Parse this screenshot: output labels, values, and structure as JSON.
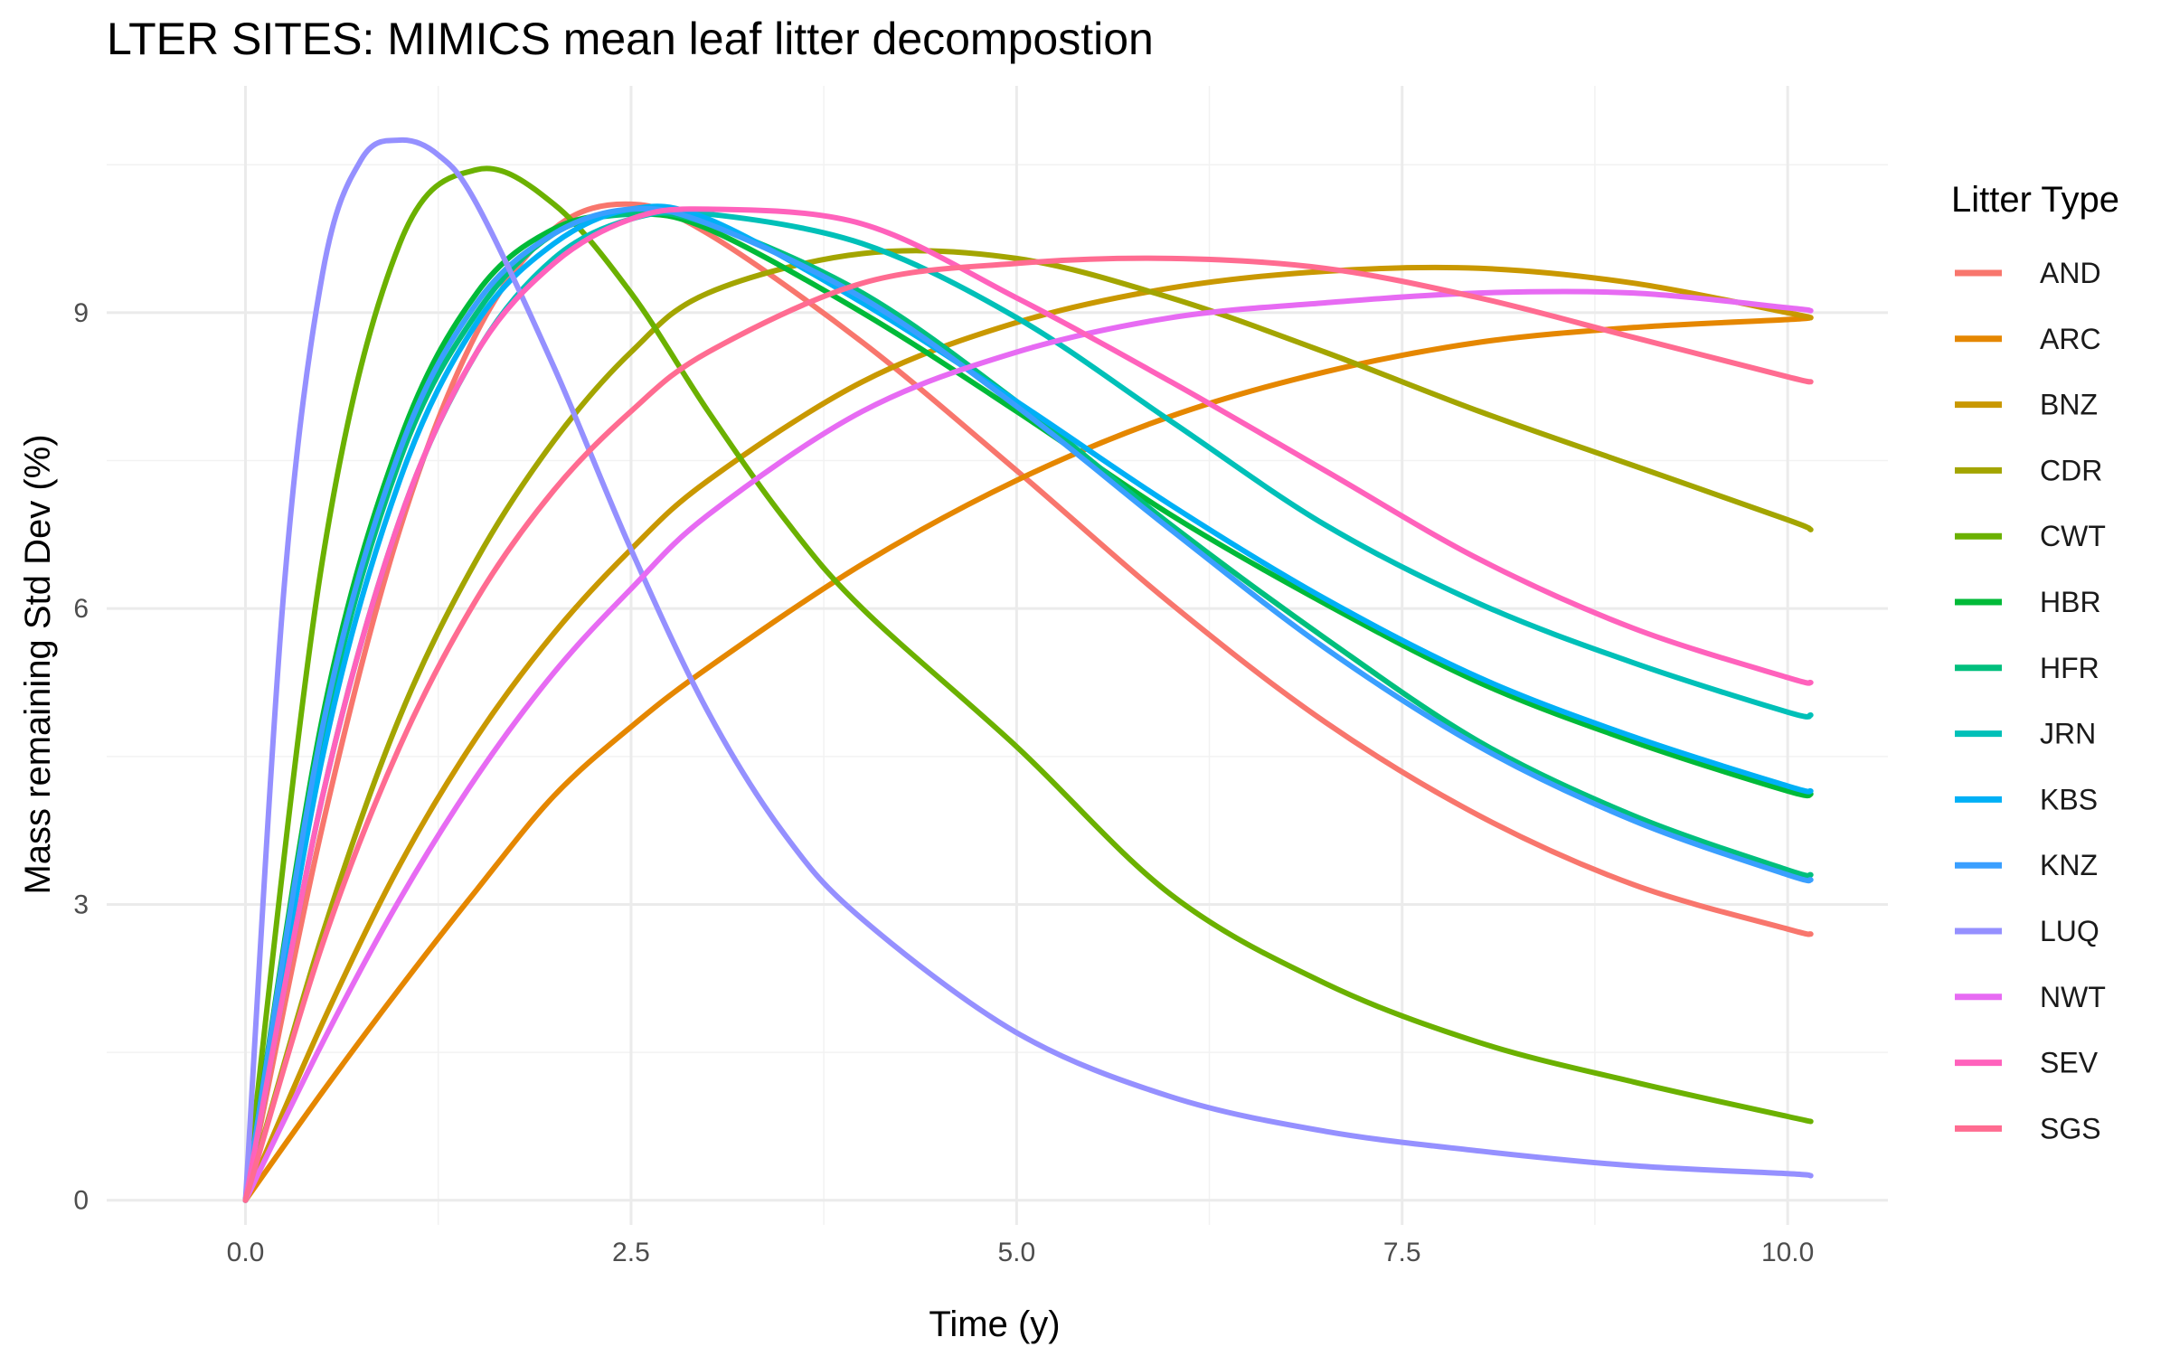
{
  "chart_data": {
    "type": "line",
    "title": "LTER SITES: MIMICS mean leaf litter decompostion",
    "xlabel": "Time (y)",
    "ylabel": "Mass remaining Std Dev (%)",
    "xlim": [
      -0.9,
      10.65
    ],
    "ylim": [
      -0.25,
      11.3
    ],
    "x_ticks": [
      0,
      2.5,
      5,
      7.5,
      10
    ],
    "x_tick_labels": [
      "0.0",
      "2.5",
      "5.0",
      "7.5",
      "10.0"
    ],
    "y_ticks": [
      0,
      3,
      6,
      9
    ],
    "y_tick_labels": [
      "0",
      "3",
      "6",
      "9"
    ],
    "x_minor": [
      1.25,
      3.75,
      6.25,
      8.75
    ],
    "y_minor": [
      1.5,
      4.5,
      7.5,
      10.5
    ],
    "grid": true,
    "legend": {
      "title": "Litter Type",
      "placement": "right"
    },
    "series": [
      {
        "name": "AND",
        "color": "#F8766D",
        "x": [
          0,
          0.5,
          1,
          1.5,
          2,
          2.5,
          3,
          4,
          5,
          6,
          7,
          8,
          9,
          10,
          10.15
        ],
        "values": [
          0,
          3.8,
          6.8,
          8.8,
          9.85,
          10.1,
          9.8,
          8.7,
          7.4,
          6.05,
          4.85,
          3.9,
          3.2,
          2.75,
          2.7
        ]
      },
      {
        "name": "ARC",
        "color": "#E58700",
        "x": [
          0,
          0.5,
          1,
          1.5,
          2,
          2.5,
          3,
          4,
          5,
          6,
          7,
          8,
          9,
          10,
          10.15
        ],
        "values": [
          0,
          1.1,
          2.15,
          3.15,
          4.1,
          4.8,
          5.4,
          6.45,
          7.3,
          7.95,
          8.4,
          8.7,
          8.85,
          8.93,
          8.95
        ]
      },
      {
        "name": "BNZ",
        "color": "#C99800",
        "x": [
          0,
          0.5,
          1,
          1.5,
          2,
          2.5,
          3,
          4,
          5,
          6,
          7,
          8,
          9,
          10,
          10.15
        ],
        "values": [
          0,
          1.8,
          3.4,
          4.7,
          5.75,
          6.6,
          7.3,
          8.3,
          8.9,
          9.25,
          9.42,
          9.45,
          9.3,
          9.0,
          8.95
        ]
      },
      {
        "name": "CDR",
        "color": "#A3A500",
        "x": [
          0,
          0.5,
          1,
          1.5,
          2,
          2.5,
          3,
          4,
          5,
          6,
          7,
          8,
          9,
          10,
          10.15
        ],
        "values": [
          0,
          2.7,
          4.9,
          6.5,
          7.7,
          8.6,
          9.2,
          9.6,
          9.55,
          9.15,
          8.6,
          8.0,
          7.45,
          6.9,
          6.8
        ]
      },
      {
        "name": "CWT",
        "color": "#6BB100",
        "x": [
          0,
          0.5,
          1,
          1.5,
          2,
          2.5,
          3,
          3.5,
          4,
          5,
          6,
          7,
          8,
          9,
          10,
          10.15
        ],
        "values": [
          0,
          6.5,
          9.7,
          10.45,
          10.1,
          9.2,
          8.0,
          6.9,
          6.0,
          4.6,
          3.1,
          2.2,
          1.6,
          1.2,
          0.85,
          0.8
        ]
      },
      {
        "name": "HBR",
        "color": "#00BA38",
        "x": [
          0,
          0.5,
          1,
          1.5,
          2,
          2.5,
          3,
          4,
          5,
          6,
          7,
          8,
          9,
          10,
          10.15
        ],
        "values": [
          0,
          4.9,
          7.7,
          9.2,
          9.85,
          10.0,
          9.85,
          9.0,
          8.0,
          6.95,
          6.05,
          5.25,
          4.65,
          4.15,
          4.12
        ]
      },
      {
        "name": "HFR",
        "color": "#00BF7D",
        "x": [
          0,
          0.5,
          1,
          1.5,
          2,
          2.5,
          3,
          4,
          5,
          6,
          7,
          8,
          9,
          10,
          10.15
        ],
        "values": [
          0,
          4.7,
          7.5,
          9.0,
          9.8,
          10.0,
          9.9,
          9.2,
          8.1,
          6.85,
          5.7,
          4.65,
          3.9,
          3.35,
          3.3
        ]
      },
      {
        "name": "JRN",
        "color": "#00C0B8",
        "x": [
          0,
          0.5,
          1,
          1.5,
          2,
          2.5,
          3,
          4,
          5,
          6,
          7,
          8,
          9,
          10,
          10.15
        ],
        "values": [
          0,
          4.1,
          6.9,
          8.6,
          9.55,
          9.95,
          10.0,
          9.7,
          8.95,
          7.9,
          6.85,
          6.05,
          5.45,
          4.95,
          4.92
        ]
      },
      {
        "name": "KBS",
        "color": "#00B0F6",
        "x": [
          0,
          0.5,
          1,
          1.5,
          2,
          2.5,
          3,
          4,
          5,
          6,
          7,
          8,
          9,
          10,
          10.15
        ],
        "values": [
          0,
          4.5,
          7.3,
          8.9,
          9.7,
          10.05,
          9.95,
          9.1,
          8.1,
          7.05,
          6.1,
          5.3,
          4.7,
          4.2,
          4.15
        ]
      },
      {
        "name": "KNZ",
        "color": "#3A9FFF",
        "x": [
          0,
          0.5,
          1,
          1.5,
          2,
          2.5,
          3,
          4,
          5,
          6,
          7,
          8,
          9,
          10,
          10.15
        ],
        "values": [
          0,
          4.8,
          7.6,
          9.1,
          9.8,
          10.05,
          9.9,
          9.15,
          8.05,
          6.8,
          5.6,
          4.6,
          3.85,
          3.3,
          3.25
        ]
      },
      {
        "name": "LUQ",
        "color": "#9590FF",
        "x": [
          0,
          0.25,
          0.5,
          0.75,
          1,
          1.25,
          1.5,
          2,
          2.5,
          3,
          3.5,
          4,
          5,
          6,
          7,
          8,
          9,
          10,
          10.15
        ],
        "values": [
          0,
          6.2,
          9.4,
          10.55,
          10.75,
          10.6,
          10.1,
          8.45,
          6.6,
          4.95,
          3.7,
          2.85,
          1.7,
          1.05,
          0.7,
          0.5,
          0.35,
          0.27,
          0.25
        ]
      },
      {
        "name": "NWT",
        "color": "#E76BF3",
        "x": [
          0,
          0.5,
          1,
          1.5,
          2,
          2.5,
          3,
          4,
          5,
          6,
          7,
          8,
          9,
          10,
          10.15
        ],
        "values": [
          0,
          1.6,
          3.05,
          4.3,
          5.35,
          6.2,
          6.95,
          8.0,
          8.6,
          8.95,
          9.1,
          9.2,
          9.2,
          9.05,
          9.02
        ]
      },
      {
        "name": "SEV",
        "color": "#FF62BC",
        "x": [
          0,
          0.5,
          1,
          1.5,
          2,
          2.5,
          3,
          4,
          5,
          6,
          7,
          8,
          9,
          10,
          10.15
        ],
        "values": [
          0,
          4.1,
          6.9,
          8.6,
          9.5,
          9.95,
          10.05,
          9.9,
          9.15,
          8.3,
          7.4,
          6.5,
          5.8,
          5.3,
          5.25
        ]
      },
      {
        "name": "SGS",
        "color": "#FF6C91",
        "x": [
          0,
          0.5,
          1,
          1.5,
          2,
          2.5,
          3,
          4,
          5,
          6,
          7,
          8,
          9,
          10,
          10.15
        ],
        "values": [
          0,
          2.6,
          4.6,
          6.1,
          7.2,
          8.0,
          8.6,
          9.3,
          9.5,
          9.55,
          9.45,
          9.15,
          8.75,
          8.35,
          8.3
        ]
      }
    ]
  }
}
